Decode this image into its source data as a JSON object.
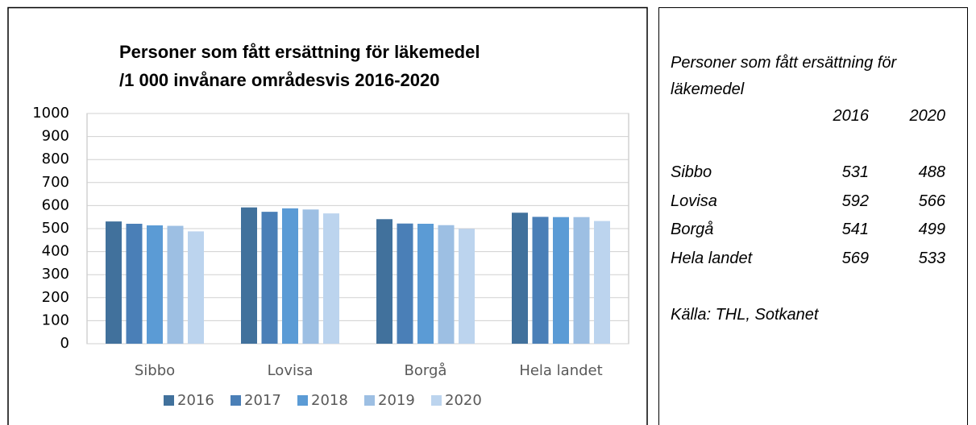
{
  "chart_data": {
    "type": "bar",
    "title": [
      "Personer som fått ersättning för läkemedel",
      "/1 000 invånare områdesvis 2016-2020"
    ],
    "categories": [
      "Sibbo",
      "Lovisa",
      "Borgå",
      "Hela landet"
    ],
    "series": [
      {
        "name": "2016",
        "color": "#41719c",
        "values": [
          531,
          592,
          541,
          569
        ]
      },
      {
        "name": "2017",
        "color": "#4a7fb7",
        "values": [
          521,
          573,
          522,
          551
        ]
      },
      {
        "name": "2018",
        "color": "#5b9bd5",
        "values": [
          514,
          588,
          521,
          550
        ]
      },
      {
        "name": "2019",
        "color": "#9dbfe3",
        "values": [
          512,
          583,
          515,
          550
        ]
      },
      {
        "name": "2020",
        "color": "#bcd4ee",
        "values": [
          488,
          566,
          499,
          533
        ]
      }
    ],
    "ylim": [
      0,
      1000
    ],
    "yticks": [
      0,
      100,
      200,
      300,
      400,
      500,
      600,
      700,
      800,
      900,
      1000
    ],
    "grid": true,
    "legend": "bottom"
  },
  "side_panel": {
    "title": "Personer som fått ersättning för läkemedel",
    "columns": [
      "2016",
      "2020"
    ],
    "rows": [
      [
        "Sibbo",
        "531",
        "488"
      ],
      [
        "Lovisa",
        "592",
        "566"
      ],
      [
        "Borgå",
        "541",
        "499"
      ],
      [
        "Hela landet",
        "569",
        "533"
      ]
    ],
    "source": "Källa: THL, Sotkanet"
  }
}
